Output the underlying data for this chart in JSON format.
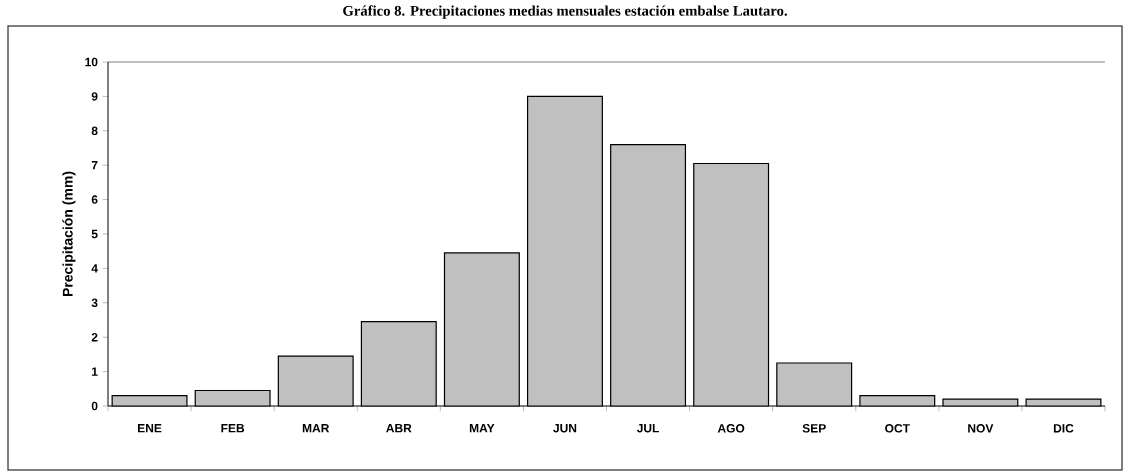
{
  "chart_data": {
    "type": "bar",
    "title": "Gráfico 8. Precipitaciones medias mensuales estación embalse Lautaro.",
    "ylabel": "Precipitación (mm)",
    "categories": [
      "ENE",
      "FEB",
      "MAR",
      "ABR",
      "MAY",
      "JUN",
      "JUL",
      "AGO",
      "SEP",
      "OCT",
      "NOV",
      "DIC"
    ],
    "values": [
      0.3,
      0.45,
      1.45,
      2.45,
      4.45,
      9,
      7.6,
      7.05,
      1.25,
      0.3,
      0.2,
      0.2
    ],
    "color": "#c0c0c0",
    "ylim": [
      0,
      10
    ],
    "yticks": [
      0,
      1,
      2,
      3,
      4,
      5,
      6,
      7,
      8,
      9,
      10
    ],
    "grid": false
  }
}
